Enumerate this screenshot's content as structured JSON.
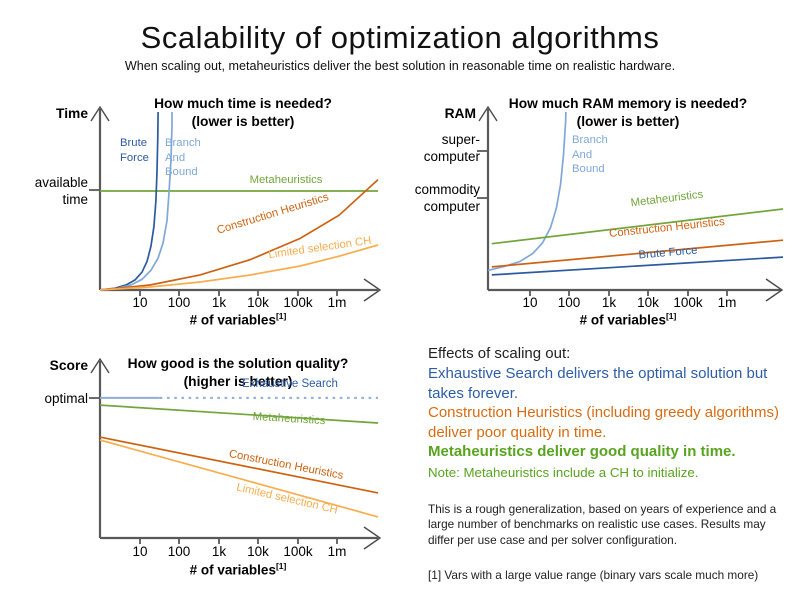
{
  "title": "Scalability of optimization algorithms",
  "subtitle": "When scaling out, metaheuristics deliver the best solution in reasonable time on realistic hardware.",
  "colors": {
    "dark_blue": "#2c5aa0",
    "light_blue": "#7fa8d9",
    "green": "#72a63c",
    "dark_orange": "#cd6312",
    "light_orange": "#f8ad4e",
    "axis_gray": "#595959",
    "text_green": "#58a41f",
    "text_orange": "#d96c12",
    "text_blue": "#2d5da7"
  },
  "chart_data": [
    {
      "id": "time",
      "type": "line",
      "title": "How much time is needed?",
      "better": "(lower is better)",
      "ylabel": "Time",
      "xlabel": "# of variables",
      "xlabel_sup": "[1]",
      "x_scale": "log",
      "x_ticks": [
        "10",
        "100",
        "1k",
        "10k",
        "100k",
        "1m"
      ],
      "y_annotations": [
        {
          "label": "available time",
          "y": 0.556
        }
      ],
      "series": [
        {
          "name": "Metaheuristics",
          "color": "#72a63c",
          "points": [
            [
              0,
              0.556
            ],
            [
              1,
              0.556
            ]
          ]
        },
        {
          "name": "Brute Force",
          "color": "#2c5aa0",
          "points": [
            [
              0,
              0
            ],
            [
              0.054,
              0.01
            ],
            [
              0.094,
              0.028
            ],
            [
              0.126,
              0.056
            ],
            [
              0.151,
              0.1
            ],
            [
              0.169,
              0.16
            ],
            [
              0.183,
              0.245
            ],
            [
              0.194,
              0.355
            ],
            [
              0.201,
              0.5
            ],
            [
              0.205,
              0.665
            ],
            [
              0.208,
              0.86
            ],
            [
              0.209,
              1
            ]
          ]
        },
        {
          "name": "Branch And Bound",
          "color": "#7fa8d9",
          "points": [
            [
              0,
              0
            ],
            [
              0.065,
              0.01
            ],
            [
              0.112,
              0.028
            ],
            [
              0.151,
              0.06
            ],
            [
              0.183,
              0.11
            ],
            [
              0.209,
              0.18
            ],
            [
              0.227,
              0.265
            ],
            [
              0.241,
              0.39
            ],
            [
              0.248,
              0.54
            ],
            [
              0.255,
              0.72
            ],
            [
              0.259,
              0.92
            ],
            [
              0.259,
              1
            ]
          ]
        },
        {
          "name": "Construction Heuristics",
          "color": "#cd6312",
          "points": [
            [
              0,
              0
            ],
            [
              0.18,
              0.028
            ],
            [
              0.36,
              0.085
            ],
            [
              0.54,
              0.17
            ],
            [
              0.72,
              0.29
            ],
            [
              0.86,
              0.42
            ],
            [
              1,
              0.62
            ]
          ]
        },
        {
          "name": "Limited selection CH",
          "color": "#f8ad4e",
          "points": [
            [
              0,
              0
            ],
            [
              0.18,
              0.017
            ],
            [
              0.36,
              0.045
            ],
            [
              0.54,
              0.084
            ],
            [
              0.72,
              0.135
            ],
            [
              0.86,
              0.19
            ],
            [
              1,
              0.253
            ]
          ]
        }
      ]
    },
    {
      "id": "ram",
      "type": "line",
      "title": "How much RAM memory is needed?",
      "better": "(lower is better)",
      "ylabel": "RAM",
      "xlabel": "# of variables",
      "xlabel_sup": "[1]",
      "x_scale": "log",
      "x_ticks": [
        "10",
        "100",
        "1k",
        "10k",
        "100k",
        "1m"
      ],
      "y_annotations": [
        {
          "label": "super-computer",
          "y": 0.78
        },
        {
          "label": "commodity computer",
          "y": 0.52
        }
      ],
      "series": [
        {
          "name": "Branch And Bound",
          "color": "#7fa8d9",
          "points": [
            [
              0,
              0.11
            ],
            [
              0.057,
              0.133
            ],
            [
              0.108,
              0.16
            ],
            [
              0.152,
              0.205
            ],
            [
              0.185,
              0.265
            ],
            [
              0.212,
              0.35
            ],
            [
              0.232,
              0.46
            ],
            [
              0.246,
              0.595
            ],
            [
              0.256,
              0.76
            ],
            [
              0.263,
              0.945
            ],
            [
              0.264,
              1
            ]
          ]
        },
        {
          "name": "Metaheuristics",
          "color": "#72a63c",
          "points": [
            [
              0.013,
              0.26
            ],
            [
              1,
              0.455
            ]
          ]
        },
        {
          "name": "Construction Heuristics",
          "color": "#cd6312",
          "points": [
            [
              0.013,
              0.13
            ],
            [
              1,
              0.28
            ]
          ]
        },
        {
          "name": "Brute Force",
          "color": "#2c5aa0",
          "points": [
            [
              0.013,
              0.085
            ],
            [
              1,
              0.185
            ]
          ]
        }
      ]
    },
    {
      "id": "quality",
      "type": "line",
      "title": "How good is the solution quality?",
      "better": "(higher is better)",
      "ylabel": "Score",
      "xlabel": "# of variables",
      "xlabel_sup": "[1]",
      "x_scale": "log",
      "x_ticks": [
        "10",
        "100",
        "1k",
        "10k",
        "100k",
        "1m"
      ],
      "y_annotations": [
        {
          "label": "optimal",
          "y": 0.805
        }
      ],
      "series": [
        {
          "name": "Exhaustive Search",
          "color": "#8caddc",
          "points": [
            [
              0,
              0.805
            ],
            [
              1,
              0.805
            ]
          ],
          "solid_until": 0.215,
          "dash": "2.6 4.6",
          "width": 2
        },
        {
          "name": "Metaheuristics",
          "color": "#72a63c",
          "points": [
            [
              0,
              0.764
            ],
            [
              1,
              0.661
            ]
          ]
        },
        {
          "name": "Construction Heuristics",
          "color": "#cd6312",
          "points": [
            [
              0,
              0.58
            ],
            [
              1,
              0.259
            ]
          ]
        },
        {
          "name": "Limited selection CH",
          "color": "#f8ad4e",
          "points": [
            [
              0,
              0.563
            ],
            [
              1,
              0.121
            ]
          ]
        }
      ]
    }
  ],
  "effects": {
    "heading": "Effects of scaling out:",
    "lines": [
      {
        "text": "Exhaustive Search delivers the optimal solution but takes forever.",
        "color": "#2d5da7"
      },
      {
        "text": "Construction Heuristics (including greedy algorithms) deliver poor quality in time.",
        "color": "#d96c12"
      },
      {
        "text": "Metaheuristics deliver good quality in time.",
        "color": "#58a41f"
      },
      {
        "text": "Note: Metaheuristics include a CH to initialize.",
        "color": "#58a41f"
      }
    ]
  },
  "disclaimer": "This is a rough generalization, based on years of experience and a large number of benchmarks on realistic use cases. Results may differ per use case and per solver configuration.",
  "footnote": "[1] Vars with a large value range (binary vars scale much more)"
}
